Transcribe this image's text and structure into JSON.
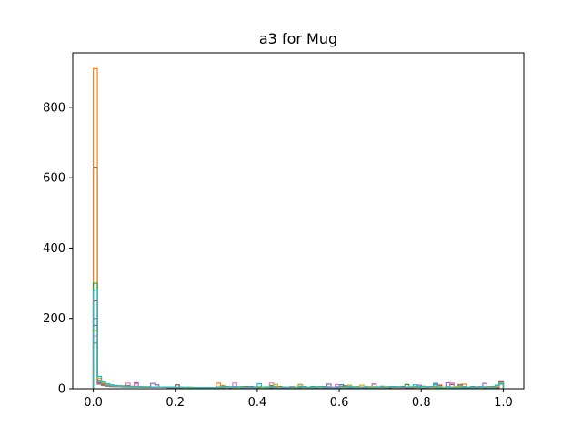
{
  "chart_data": {
    "type": "histogram",
    "title": "a3 for Mug",
    "xlabel": "",
    "ylabel": "",
    "xlim": [
      -0.05,
      1.05
    ],
    "ylim": [
      0,
      955
    ],
    "xticks": [
      0.0,
      0.2,
      0.4,
      0.6,
      0.8,
      1.0
    ],
    "xtick_labels": [
      "0.0",
      "0.2",
      "0.4",
      "0.6",
      "0.8",
      "1.0"
    ],
    "yticks": [
      0,
      200,
      400,
      600,
      800
    ],
    "ytick_labels": [
      "0",
      "200",
      "400",
      "600",
      "800"
    ],
    "grid": false,
    "histtype": "step",
    "bins": 100,
    "series": [
      {
        "color": "#1f77b4",
        "peak": 630,
        "tail": [
          40,
          22,
          14,
          10,
          9,
          8,
          8,
          7,
          7,
          6,
          6,
          6,
          5,
          5,
          5,
          5,
          5,
          4,
          4,
          4,
          4,
          4,
          4,
          3,
          3,
          3,
          3,
          3,
          3,
          3
        ]
      },
      {
        "color": "#ff7f0e",
        "peak": 910,
        "tail": [
          55,
          25,
          15,
          12,
          10,
          9,
          8,
          8,
          7,
          7,
          7,
          6,
          6,
          6,
          5,
          5,
          5,
          5,
          5,
          4,
          4,
          4,
          4,
          4,
          4,
          3,
          3,
          3,
          3,
          3
        ]
      },
      {
        "color": "#2ca02c",
        "peak": 300,
        "tail": [
          35,
          18,
          12,
          10,
          8,
          7,
          7,
          6,
          6,
          6,
          5,
          5,
          5,
          5,
          4,
          4,
          4,
          4,
          4,
          4,
          3,
          3,
          3,
          3,
          3,
          3,
          3,
          3,
          3,
          3
        ]
      },
      {
        "color": "#d62728",
        "peak": 250,
        "tail": [
          30,
          16,
          11,
          9,
          8,
          7,
          6,
          6,
          6,
          5,
          5,
          5,
          5,
          5,
          4,
          4,
          4,
          4,
          4,
          4,
          4,
          4,
          3,
          3,
          3,
          3,
          3,
          3,
          3,
          3
        ]
      },
      {
        "color": "#9467bd",
        "peak": 200,
        "tail": [
          28,
          15,
          10,
          8,
          7,
          7,
          6,
          6,
          5,
          5,
          5,
          5,
          5,
          4,
          4,
          4,
          4,
          4,
          4,
          4,
          3,
          3,
          3,
          3,
          3,
          3,
          3,
          3,
          3,
          3
        ]
      },
      {
        "color": "#8c564b",
        "peak": 180,
        "tail": [
          26,
          14,
          10,
          8,
          7,
          6,
          6,
          6,
          5,
          5,
          5,
          5,
          4,
          4,
          4,
          4,
          4,
          4,
          4,
          3,
          3,
          3,
          3,
          3,
          3,
          3,
          3,
          3,
          3,
          3
        ]
      },
      {
        "color": "#e377c2",
        "peak": 150,
        "tail": [
          25,
          14,
          10,
          8,
          7,
          6,
          6,
          5,
          5,
          5,
          5,
          5,
          4,
          4,
          4,
          4,
          4,
          4,
          3,
          3,
          3,
          3,
          3,
          3,
          3,
          3,
          3,
          3,
          3,
          3
        ]
      },
      {
        "color": "#7f7f7f",
        "peak": 130,
        "tail": [
          24,
          13,
          9,
          7,
          6,
          6,
          6,
          5,
          5,
          5,
          5,
          4,
          4,
          4,
          4,
          4,
          4,
          4,
          3,
          3,
          3,
          3,
          3,
          3,
          3,
          3,
          3,
          3,
          3,
          3
        ]
      },
      {
        "color": "#bcbd22",
        "peak": 165,
        "tail": [
          60,
          30,
          18,
          12,
          10,
          8,
          7,
          7,
          6,
          6,
          6,
          5,
          5,
          5,
          5,
          5,
          4,
          4,
          4,
          4,
          4,
          4,
          3,
          3,
          3,
          3,
          3,
          3,
          3,
          3
        ]
      },
      {
        "color": "#17becf",
        "peak": 280,
        "tail": [
          80,
          35,
          20,
          14,
          11,
          9,
          8,
          7,
          7,
          6,
          6,
          6,
          5,
          5,
          5,
          5,
          5,
          4,
          4,
          4,
          4,
          4,
          4,
          3,
          3,
          3,
          3,
          3,
          3,
          3
        ]
      }
    ]
  }
}
